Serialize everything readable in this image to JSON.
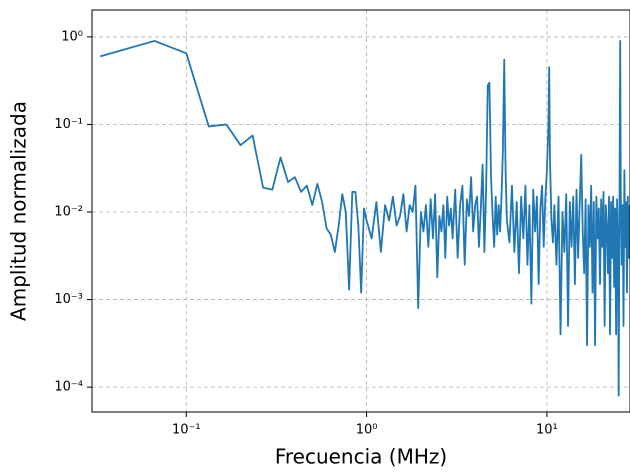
{
  "chart_data": {
    "type": "line",
    "xlabel": "Frecuencia (MHz)",
    "ylabel": "Amplitud normalizada",
    "xscale": "log",
    "yscale": "log",
    "grid": true,
    "color": "#1f77b4",
    "xlim": [
      0.03,
      28.9
    ],
    "ylim": [
      5.2e-05,
      2.03
    ],
    "xticks": [
      {
        "value": 0.1,
        "label": "10⁻¹"
      },
      {
        "value": 1,
        "label": "10⁰"
      },
      {
        "value": 10,
        "label": "10¹"
      }
    ],
    "yticks": [
      {
        "value": 0.0001,
        "label": "10⁻⁴"
      },
      {
        "value": 0.001,
        "label": "10⁻³"
      },
      {
        "value": 0.01,
        "label": "10⁻²"
      },
      {
        "value": 0.1,
        "label": "10⁻¹"
      },
      {
        "value": 1,
        "label": "10⁰"
      }
    ],
    "x": [
      0.0333,
      0.0667,
      0.1,
      0.1333,
      0.1667,
      0.2,
      0.2333,
      0.2667,
      0.3,
      0.3333,
      0.3667,
      0.4,
      0.4333,
      0.4667,
      0.5,
      0.5333,
      0.5667,
      0.6,
      0.6333,
      0.6667,
      0.7,
      0.7333,
      0.7667,
      0.8,
      0.8333,
      0.8667,
      0.9,
      0.9333,
      0.9667,
      1.0,
      1.0667,
      1.1333,
      1.2,
      1.2667,
      1.3333,
      1.4,
      1.4667,
      1.5333,
      1.6,
      1.6667,
      1.7333,
      1.8,
      1.8667,
      1.9333,
      2.0,
      2.0667,
      2.1333,
      2.2,
      2.2667,
      2.3333,
      2.4,
      2.4667,
      2.5333,
      2.6,
      2.6667,
      2.7333,
      2.8,
      2.8667,
      2.9333,
      3.0,
      3.1,
      3.2,
      3.3,
      3.4,
      3.5,
      3.6,
      3.7,
      3.8,
      3.9,
      4.0,
      4.1,
      4.2,
      4.3,
      4.4,
      4.5,
      4.6,
      4.7,
      4.8,
      4.9,
      5.0,
      5.1,
      5.2,
      5.3,
      5.4,
      5.5,
      5.6,
      5.7,
      5.8,
      5.9,
      6.0,
      6.2,
      6.4,
      6.6,
      6.8,
      7.0,
      7.2,
      7.4,
      7.6,
      7.8,
      8.0,
      8.2,
      8.4,
      8.6,
      8.8,
      9.0,
      9.2,
      9.4,
      9.6,
      9.8,
      10.0,
      10.2,
      10.3,
      10.4,
      10.6,
      10.8,
      11.0,
      11.3,
      11.6,
      11.9,
      12.2,
      12.5,
      12.8,
      13.1,
      13.4,
      13.7,
      14.0,
      14.3,
      14.6,
      14.9,
      15.2,
      15.5,
      15.8,
      16.1,
      16.4,
      16.7,
      17.0,
      17.3,
      17.6,
      17.9,
      18.2,
      18.5,
      18.8,
      19.1,
      19.4,
      19.7,
      20.0,
      20.3,
      20.6,
      20.9,
      21.2,
      21.5,
      21.8,
      22.1,
      22.4,
      22.7,
      23.0,
      23.3,
      23.6,
      23.9,
      24.2,
      24.5,
      24.8,
      25.0,
      25.3,
      25.5,
      25.7,
      26.0,
      26.3,
      26.6,
      26.9,
      27.2,
      27.5,
      27.8,
      28.1,
      28.4,
      28.7
    ],
    "values": [
      0.6,
      0.9,
      0.65,
      0.095,
      0.1,
      0.058,
      0.075,
      0.019,
      0.018,
      0.042,
      0.022,
      0.025,
      0.017,
      0.02,
      0.012,
      0.021,
      0.013,
      0.0065,
      0.0055,
      0.0035,
      0.007,
      0.016,
      0.01,
      0.0013,
      0.017,
      0.017,
      0.007,
      0.0012,
      0.011,
      0.008,
      0.005,
      0.013,
      0.0035,
      0.012,
      0.008,
      0.015,
      0.007,
      0.009,
      0.016,
      0.006,
      0.012,
      0.01,
      0.02,
      0.0008,
      0.01,
      0.006,
      0.012,
      0.004,
      0.014,
      0.005,
      0.016,
      0.0018,
      0.009,
      0.006,
      0.012,
      0.003,
      0.015,
      0.007,
      0.011,
      0.005,
      0.018,
      0.003,
      0.012,
      0.02,
      0.0025,
      0.014,
      0.009,
      0.025,
      0.006,
      0.012,
      0.015,
      0.004,
      0.011,
      0.035,
      0.0035,
      0.018,
      0.28,
      0.3,
      0.025,
      0.009,
      0.004,
      0.015,
      0.0055,
      0.012,
      0.006,
      0.015,
      0.05,
      0.55,
      0.03,
      0.008,
      0.0045,
      0.02,
      0.0035,
      0.013,
      0.002,
      0.015,
      0.005,
      0.02,
      0.0025,
      0.012,
      0.0009,
      0.018,
      0.006,
      0.015,
      0.0015,
      0.011,
      0.02,
      0.004,
      0.014,
      0.03,
      0.1,
      0.45,
      0.04,
      0.008,
      0.0045,
      0.012,
      0.0025,
      0.015,
      0.0004,
      0.01,
      0.0035,
      0.016,
      0.0005,
      0.013,
      0.004,
      0.015,
      0.0015,
      0.018,
      0.003,
      0.012,
      0.045,
      0.006,
      0.002,
      0.014,
      0.0003,
      0.012,
      0.004,
      0.02,
      0.0012,
      0.013,
      0.0003,
      0.015,
      0.005,
      0.011,
      0.0015,
      0.014,
      0.004,
      0.017,
      0.0005,
      0.012,
      0.007,
      0.002,
      0.015,
      0.0004,
      0.013,
      0.003,
      0.015,
      0.0014,
      0.011,
      0.0004,
      0.014,
      0.003,
      8e-05,
      0.02,
      0.9,
      0.015,
      0.0025,
      0.012,
      0.0005,
      0.03,
      0.004,
      0.013,
      0.0012,
      0.015,
      0.003,
      0.012
    ]
  }
}
